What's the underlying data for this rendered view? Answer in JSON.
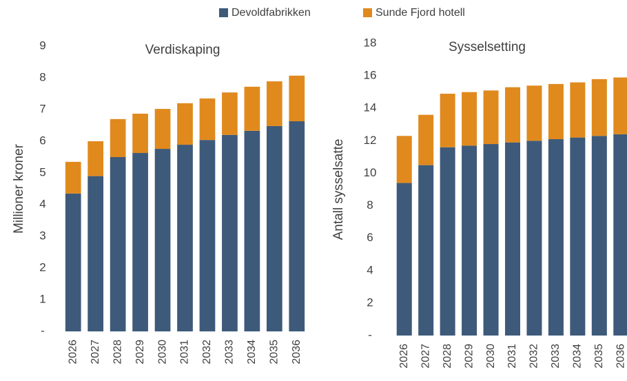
{
  "legend": {
    "items": [
      {
        "name": "Devoldfabrikken",
        "color": "#3e5a7a"
      },
      {
        "name": "Sunde Fjord hotell",
        "color": "#e08a1e"
      }
    ]
  },
  "chart_data": [
    {
      "type": "bar",
      "stacked": true,
      "title": "Verdiskaping",
      "y_label": "Millioner kroner",
      "categories": [
        "2026",
        "2027",
        "2028",
        "2029",
        "2030",
        "2031",
        "2032",
        "2033",
        "2034",
        "2035",
        "2036"
      ],
      "series": [
        {
          "values": [
            4.35,
            4.9,
            5.5,
            5.63,
            5.76,
            5.89,
            6.04,
            6.2,
            6.33,
            6.48,
            6.63
          ]
        },
        {
          "values": [
            1.0,
            1.1,
            1.2,
            1.24,
            1.26,
            1.31,
            1.31,
            1.34,
            1.39,
            1.41,
            1.44
          ]
        }
      ],
      "ylim": [
        0,
        9
      ],
      "yticks": [
        {
          "value": 0,
          "label": "-"
        },
        1,
        2,
        3,
        4,
        5,
        6,
        7,
        8,
        9
      ]
    },
    {
      "type": "bar",
      "stacked": true,
      "title": "Sysselsetting",
      "y_label": "Antall sysselsatte",
      "categories": [
        "2026",
        "2027",
        "2028",
        "2029",
        "2030",
        "2031",
        "2032",
        "2033",
        "2034",
        "2035",
        "2036"
      ],
      "series": [
        {
          "values": [
            9.4,
            10.5,
            11.6,
            11.7,
            11.8,
            11.9,
            12.0,
            12.1,
            12.2,
            12.3,
            12.4
          ]
        },
        {
          "values": [
            2.9,
            3.1,
            3.3,
            3.3,
            3.3,
            3.4,
            3.4,
            3.4,
            3.4,
            3.5,
            3.5
          ]
        }
      ],
      "ylim": [
        0,
        18
      ],
      "yticks": [
        {
          "value": 0,
          "label": "-"
        },
        2,
        4,
        6,
        8,
        10,
        12,
        14,
        16,
        18
      ]
    }
  ]
}
